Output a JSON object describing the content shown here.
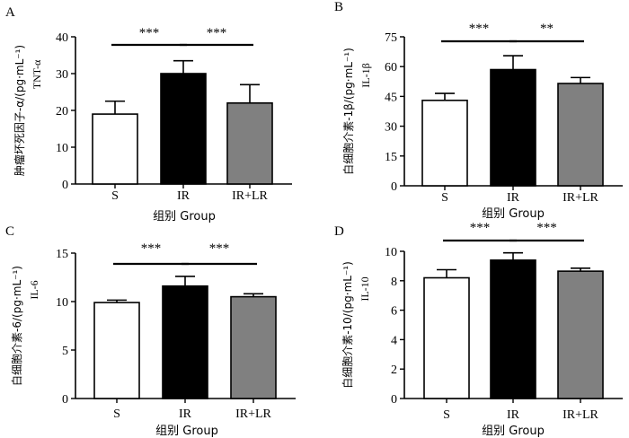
{
  "chart_data": [
    {
      "panel_letter": "A",
      "type": "bar",
      "categories": [
        "S",
        "IR",
        "IR+LR"
      ],
      "values": [
        19,
        30,
        22
      ],
      "errors": [
        3.5,
        3.5,
        5
      ],
      "fills": [
        "#ffffff",
        "#000000",
        "#808080"
      ],
      "ylabel_line1": "肿瘤坏死因子-α/(pg·mL⁻¹)",
      "ylabel_line2": "TNT-α",
      "xlabel": "组别 Group",
      "ylim": [
        0,
        40
      ],
      "yticks": [
        0,
        10,
        20,
        30,
        40
      ],
      "significance": [
        {
          "from": 0,
          "to": 1,
          "label": "***"
        },
        {
          "from": 1,
          "to": 2,
          "label": "***"
        }
      ]
    },
    {
      "panel_letter": "B",
      "type": "bar",
      "categories": [
        "S",
        "IR",
        "IR+LR"
      ],
      "values": [
        43,
        58.5,
        51.5
      ],
      "errors": [
        3.5,
        7,
        3
      ],
      "fills": [
        "#ffffff",
        "#000000",
        "#808080"
      ],
      "ylabel_line1": "白细胞介素-1β/(pg·mL⁻¹)",
      "ylabel_line2": "IL-1β",
      "xlabel": "组别 Group",
      "ylim": [
        0,
        75
      ],
      "yticks": [
        0,
        15,
        30,
        45,
        60,
        75
      ],
      "significance": [
        {
          "from": 0,
          "to": 1,
          "label": "***"
        },
        {
          "from": 1,
          "to": 2,
          "label": "**"
        }
      ]
    },
    {
      "panel_letter": "C",
      "type": "bar",
      "categories": [
        "S",
        "IR",
        "IR+LR"
      ],
      "values": [
        9.9,
        11.6,
        10.5
      ],
      "errors": [
        0.25,
        1.0,
        0.3
      ],
      "fills": [
        "#ffffff",
        "#000000",
        "#808080"
      ],
      "ylabel_line1": "白细胞介素-6/(pg·mL⁻¹)",
      "ylabel_line2": "IL-6",
      "xlabel": "组别 Group",
      "ylim": [
        0,
        15
      ],
      "yticks": [
        0,
        5,
        10,
        15
      ],
      "significance": [
        {
          "from": 0,
          "to": 1,
          "label": "***"
        },
        {
          "from": 1,
          "to": 2,
          "label": "***"
        }
      ]
    },
    {
      "panel_letter": "D",
      "type": "bar",
      "categories": [
        "S",
        "IR",
        "IR+LR"
      ],
      "values": [
        8.2,
        9.4,
        8.65
      ],
      "errors": [
        0.55,
        0.5,
        0.2
      ],
      "fills": [
        "#ffffff",
        "#000000",
        "#808080"
      ],
      "ylabel_line1": "白细胞介素-10/(pg·mL⁻¹)",
      "ylabel_line2": "IL-10",
      "xlabel": "组别 Group",
      "ylim": [
        0,
        10
      ],
      "yticks": [
        0,
        2,
        4,
        6,
        8,
        10
      ],
      "significance": [
        {
          "from": 0,
          "to": 1,
          "label": "***"
        },
        {
          "from": 1,
          "to": 2,
          "label": "***"
        }
      ]
    }
  ]
}
